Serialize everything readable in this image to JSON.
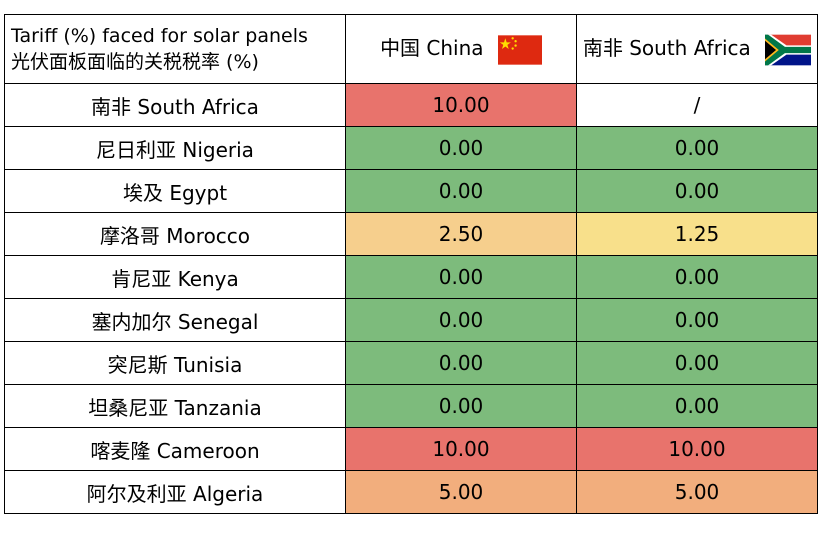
{
  "header": {
    "title_lines": [
      "Tariff (%) faced for solar panels",
      "光伏面板面临的关税税率 (%)"
    ],
    "columns": [
      "中国 China",
      "南非 South Africa"
    ]
  },
  "table": {
    "rows": [
      {
        "country": "南非 South Africa",
        "cells": [
          {
            "text": "10.00",
            "color": "#e8736c"
          },
          {
            "text": "/",
            "color": "#ffffff"
          }
        ]
      },
      {
        "country": "尼日利亚 Nigeria",
        "cells": [
          {
            "text": "0.00",
            "color": "#7dbb7c"
          },
          {
            "text": "0.00",
            "color": "#7dbb7c"
          }
        ]
      },
      {
        "country": "埃及 Egypt",
        "cells": [
          {
            "text": "0.00",
            "color": "#7dbb7c"
          },
          {
            "text": "0.00",
            "color": "#7dbb7c"
          }
        ]
      },
      {
        "country": "摩洛哥 Morocco",
        "cells": [
          {
            "text": "2.50",
            "color": "#f6cf8d"
          },
          {
            "text": "1.25",
            "color": "#f8e08b"
          }
        ]
      },
      {
        "country": "肯尼亚 Kenya",
        "cells": [
          {
            "text": "0.00",
            "color": "#7dbb7c"
          },
          {
            "text": "0.00",
            "color": "#7dbb7c"
          }
        ]
      },
      {
        "country": "塞内加尔 Senegal",
        "cells": [
          {
            "text": "0.00",
            "color": "#7dbb7c"
          },
          {
            "text": "0.00",
            "color": "#7dbb7c"
          }
        ]
      },
      {
        "country": "突尼斯 Tunisia",
        "cells": [
          {
            "text": "0.00",
            "color": "#7dbb7c"
          },
          {
            "text": "0.00",
            "color": "#7dbb7c"
          }
        ]
      },
      {
        "country": "坦桑尼亚 Tanzania",
        "cells": [
          {
            "text": "0.00",
            "color": "#7dbb7c"
          },
          {
            "text": "0.00",
            "color": "#7dbb7c"
          }
        ]
      },
      {
        "country": "喀麦隆 Cameroon",
        "cells": [
          {
            "text": "10.00",
            "color": "#e8736c"
          },
          {
            "text": "10.00",
            "color": "#e8736c"
          }
        ]
      },
      {
        "country": "阿尔及利亚 Algeria",
        "cells": [
          {
            "text": "5.00",
            "color": "#f2ae7d"
          },
          {
            "text": "5.00",
            "color": "#f2ae7d"
          }
        ]
      }
    ]
  }
}
